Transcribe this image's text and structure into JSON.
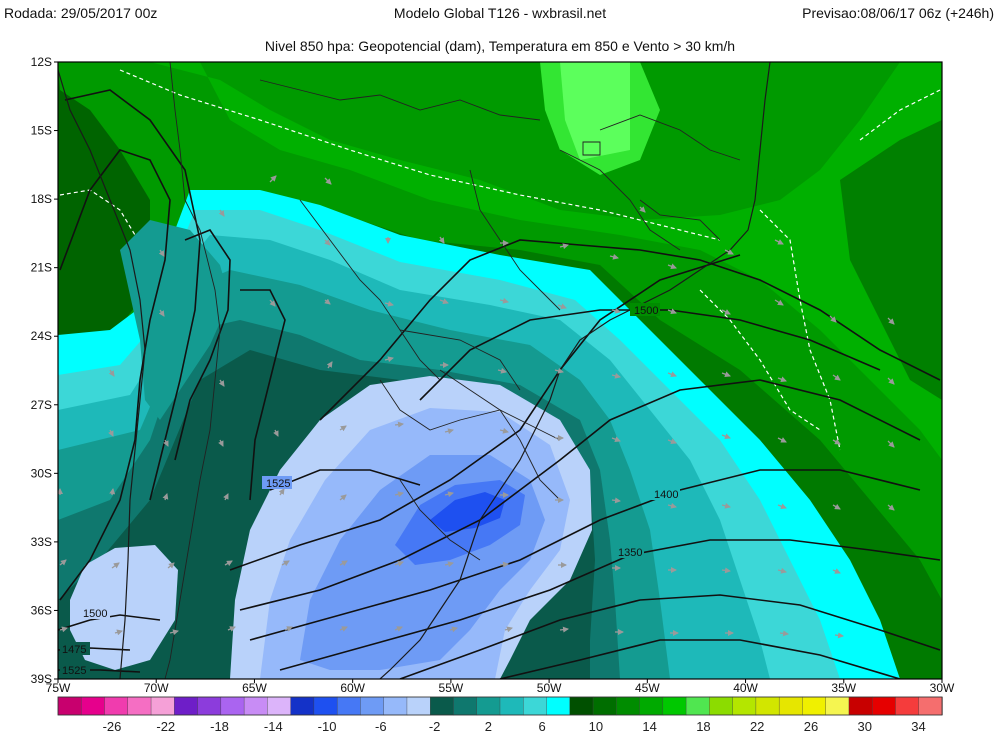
{
  "header": {
    "run": "Rodada: 29/05/2017 00z",
    "model": "Modelo Global T126 - wxbrasil.net",
    "forecast": "Previsao:08/06/17 06z (+246h)",
    "subtitle": "Nivel 850 hpa: Geopotencial (dam), Temperatura em 850 e Vento > 30 km/h"
  },
  "map": {
    "lat_ticks": [
      "12S",
      "15S",
      "18S",
      "21S",
      "24S",
      "27S",
      "30S",
      "33S",
      "36S",
      "39S"
    ],
    "lon_ticks": [
      "75W",
      "70W",
      "65W",
      "60W",
      "55W",
      "50W",
      "45W",
      "40W",
      "35W",
      "30W"
    ],
    "contour_labels": [
      "1525",
      "1500",
      "1475",
      "1525",
      "1400",
      "1350",
      "1500"
    ],
    "colors": {
      "frame": "#000000",
      "coastline": "#1a1a1a",
      "wind_arrow": "#9a9a9a",
      "isotherm_dashed": "#ffffff"
    }
  },
  "colorbar": {
    "labels": [
      "-26",
      "-22",
      "-18",
      "-14",
      "-10",
      "-6",
      "-2",
      "2",
      "6",
      "10",
      "14",
      "18",
      "22",
      "26",
      "30",
      "34"
    ],
    "colors": [
      "#c8006e",
      "#e6008c",
      "#f03cae",
      "#f56ec3",
      "#f5a0d7",
      "#6e1ec8",
      "#8c3cdc",
      "#aa64f0",
      "#c88cf5",
      "#dcb4fa",
      "#1432c8",
      "#1e50f0",
      "#4678f5",
      "#6e9bf5",
      "#96b9fa",
      "#b9d2fa",
      "#0a5a4b",
      "#0f786e",
      "#149b91",
      "#1eb9b9",
      "#3cd7d7",
      "#00ffff",
      "#005000",
      "#006e00",
      "#008c00",
      "#00aa00",
      "#00c800",
      "#50e650",
      "#8cdc00",
      "#b4e600",
      "#d2e600",
      "#e6e600",
      "#f0f000",
      "#f5f550",
      "#c80000",
      "#e60000",
      "#f53c3c",
      "#f56e6e"
    ]
  }
}
